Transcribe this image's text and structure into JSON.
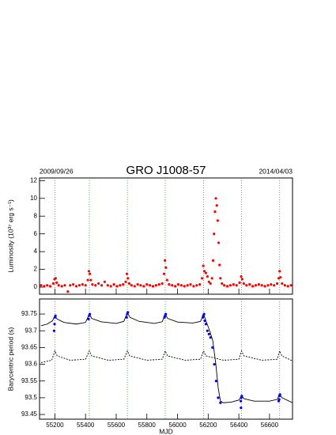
{
  "header": {
    "left_date": "2009/09/26",
    "title": "GRO J1008-57",
    "right_date": "2014/04/03"
  },
  "chart_data": [
    {
      "type": "scatter",
      "ylabel": "Luminosity  (10³⁷ erg s⁻¹)",
      "xlim": [
        55100,
        56750
      ],
      "xticks": [
        55200,
        55400,
        55600,
        55800,
        56000,
        56200,
        56400,
        56600
      ],
      "ylim": [
        -0.8,
        12.3
      ],
      "yticks": [
        0,
        2,
        4,
        6,
        8,
        10,
        12
      ],
      "vlines": [
        55200,
        55425,
        55673,
        55920,
        56170,
        56418,
        56666
      ],
      "vline_color": "#22aa22",
      "series": [
        {
          "style": "points",
          "color": "#ff0000",
          "x": [
            55110,
            55130,
            55150,
            55170,
            55190,
            55198,
            55205,
            55212,
            55225,
            55245,
            55265,
            55285,
            55300,
            55320,
            55340,
            55360,
            55380,
            55400,
            55415,
            55422,
            55428,
            55435,
            55445,
            55465,
            55485,
            55505,
            55525,
            55545,
            55565,
            55585,
            55605,
            55625,
            55645,
            55662,
            55670,
            55676,
            55685,
            55700,
            55720,
            55740,
            55760,
            55780,
            55800,
            55820,
            55840,
            55860,
            55880,
            55900,
            55912,
            55918,
            55924,
            55932,
            55945,
            55965,
            55985,
            56005,
            56025,
            56045,
            56065,
            56085,
            56105,
            56125,
            56145,
            56160,
            56168,
            56175,
            56185,
            56195,
            56205,
            56215,
            56225,
            56232,
            56238,
            56244,
            56250,
            56256,
            56262,
            56268,
            56274,
            56280,
            56290,
            56305,
            56325,
            56345,
            56365,
            56385,
            56405,
            56415,
            56422,
            56432,
            56450,
            56470,
            56490,
            56510,
            56530,
            56550,
            56570,
            56590,
            56610,
            56630,
            56650,
            56660,
            56666,
            56672,
            56682,
            56700,
            56720,
            56740
          ],
          "values": [
            0.2,
            0.1,
            0.2,
            0.1,
            0.4,
            0.9,
            1.0,
            0.5,
            0.2,
            0.1,
            0.2,
            -0.5,
            0.2,
            0.3,
            0.1,
            0.2,
            0.3,
            0.2,
            0.8,
            1.8,
            1.5,
            0.8,
            0.3,
            0.2,
            0.4,
            0.2,
            0.6,
            0.2,
            0.1,
            0.3,
            0.1,
            0.2,
            0.3,
            0.6,
            1.5,
            1.0,
            0.4,
            0.2,
            0.1,
            0.3,
            0.2,
            0.1,
            0.3,
            0.2,
            0.1,
            0.2,
            0.3,
            0.4,
            1.5,
            3.0,
            2.2,
            0.8,
            0.3,
            0.2,
            0.1,
            0.3,
            0.2,
            0.1,
            0.2,
            0.3,
            0.1,
            0.2,
            0.3,
            1.0,
            2.4,
            1.8,
            1.6,
            1.2,
            0.6,
            0.4,
            1.0,
            3.0,
            6.0,
            8.5,
            10.0,
            9.2,
            7.5,
            5.0,
            2.5,
            1.0,
            0.4,
            0.2,
            0.1,
            0.2,
            0.3,
            0.2,
            0.5,
            1.2,
            0.9,
            0.4,
            0.2,
            0.3,
            0.1,
            0.2,
            0.3,
            0.2,
            0.1,
            0.2,
            0.3,
            0.2,
            0.4,
            1.0,
            1.8,
            1.1,
            0.4,
            0.2,
            0.1,
            0.2
          ]
        }
      ]
    },
    {
      "type": "line",
      "ylabel": "Barycentric period (s)",
      "xlabel": "MJD",
      "xlim": [
        55100,
        56750
      ],
      "xticks": [
        55200,
        55400,
        55600,
        55800,
        56000,
        56200,
        56400,
        56600
      ],
      "ylim": [
        93.436,
        93.795
      ],
      "yticks": [
        93.45,
        93.5,
        93.55,
        93.6,
        93.65,
        93.7,
        93.75
      ],
      "vlines": [
        55200,
        55425,
        55673,
        55920,
        56170,
        56418,
        56666
      ],
      "vline_color": "#22aa22",
      "series": [
        {
          "style": "solid",
          "color": "#000000",
          "x": [
            55110,
            55150,
            55185,
            55200,
            55215,
            55260,
            55340,
            55400,
            55425,
            55440,
            55500,
            55600,
            55650,
            55673,
            55690,
            55750,
            55850,
            55900,
            55920,
            55935,
            56000,
            56100,
            56150,
            56170,
            56185,
            56210,
            56230,
            56250,
            56265,
            56280,
            56300,
            56350,
            56400,
            56418,
            56435,
            56500,
            56600,
            56650,
            56666,
            56682,
            56750
          ],
          "values": [
            93.715,
            93.72,
            93.73,
            93.745,
            93.735,
            93.725,
            93.72,
            93.725,
            93.75,
            93.737,
            93.727,
            93.722,
            93.728,
            93.755,
            93.74,
            93.728,
            93.722,
            93.727,
            93.75,
            93.737,
            93.726,
            93.723,
            93.728,
            93.75,
            93.73,
            93.7,
            93.67,
            93.6,
            93.53,
            93.49,
            93.485,
            93.487,
            93.493,
            93.505,
            93.497,
            93.49,
            93.49,
            93.495,
            93.51,
            93.5,
            93.485
          ]
        },
        {
          "style": "dashed",
          "color": "#000000",
          "x": [
            55110,
            55180,
            55200,
            55215,
            55300,
            55400,
            55425,
            55440,
            55550,
            55650,
            55673,
            55688,
            55800,
            55900,
            55920,
            55935,
            56050,
            56150,
            56170,
            56185,
            56300,
            56400,
            56418,
            56433,
            56550,
            56650,
            56666,
            56681,
            56750
          ],
          "values": [
            93.605,
            93.612,
            93.64,
            93.625,
            93.612,
            93.615,
            93.64,
            93.625,
            93.612,
            93.615,
            93.64,
            93.625,
            93.612,
            93.615,
            93.64,
            93.625,
            93.612,
            93.615,
            93.64,
            93.625,
            93.612,
            93.615,
            93.64,
            93.625,
            93.612,
            93.615,
            93.64,
            93.625,
            93.61
          ]
        },
        {
          "style": "points",
          "color": "#0000ee",
          "x": [
            55195,
            55198,
            55201,
            55204,
            55420,
            55424,
            55428,
            55668,
            55672,
            55676,
            55915,
            55919,
            55923,
            56165,
            56169,
            56173,
            56178,
            56185,
            56195,
            56205,
            56215,
            56228,
            56240,
            56252,
            56265,
            56280,
            56413,
            56416,
            56419,
            56414,
            56660,
            56664,
            56668,
            56663
          ],
          "values": [
            93.7,
            93.72,
            93.74,
            93.745,
            93.735,
            93.745,
            93.75,
            93.74,
            93.75,
            93.755,
            93.74,
            93.745,
            93.75,
            93.74,
            93.745,
            93.75,
            93.73,
            93.72,
            93.7,
            93.69,
            93.68,
            93.65,
            93.6,
            93.55,
            93.5,
            93.485,
            93.49,
            93.5,
            93.505,
            93.47,
            93.49,
            93.505,
            93.51,
            93.495
          ]
        }
      ]
    }
  ]
}
